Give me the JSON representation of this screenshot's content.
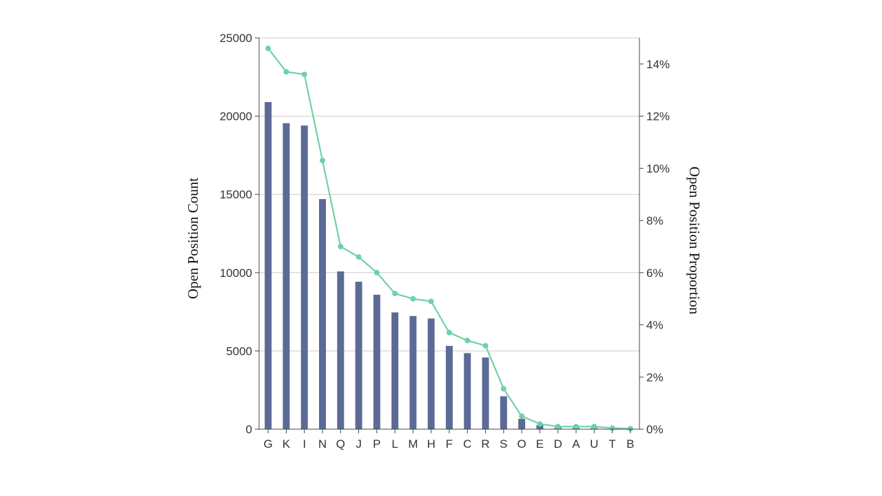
{
  "chart_data": {
    "type": "bar+line",
    "categories": [
      "G",
      "K",
      "I",
      "N",
      "Q",
      "J",
      "P",
      "L",
      "M",
      "H",
      "F",
      "C",
      "R",
      "S",
      "O",
      "E",
      "D",
      "A",
      "U",
      "T",
      "B"
    ],
    "series": [
      {
        "type": "bar",
        "axis": "left",
        "values": [
          20900,
          19550,
          19400,
          14700,
          10080,
          9420,
          8590,
          7460,
          7230,
          7070,
          5320,
          4860,
          4580,
          2100,
          660,
          260,
          110,
          90,
          80,
          25,
          10
        ]
      },
      {
        "type": "line",
        "axis": "right",
        "values": [
          14.6,
          13.7,
          13.6,
          10.3,
          7.0,
          6.6,
          6.0,
          5.2,
          5.0,
          4.9,
          3.7,
          3.4,
          3.2,
          1.55,
          0.5,
          0.2,
          0.1,
          0.1,
          0.1,
          0.04,
          0.02
        ]
      }
    ],
    "ylabel": "Open Position Count",
    "y2label": "Open Position Proportion",
    "ylim": [
      0,
      25000
    ],
    "y2lim": [
      0,
      15
    ],
    "yticks": [
      "0",
      "5000",
      "10000",
      "15000",
      "20000",
      "25000"
    ],
    "y2ticks": [
      "0%",
      "2%",
      "4%",
      "6%",
      "8%",
      "10%",
      "12%",
      "14%"
    ],
    "grid": true,
    "colors": {
      "bar": "#5b6b96",
      "line": "#6fd1a8",
      "grid": "#cccccc",
      "axis": "#444444"
    }
  }
}
